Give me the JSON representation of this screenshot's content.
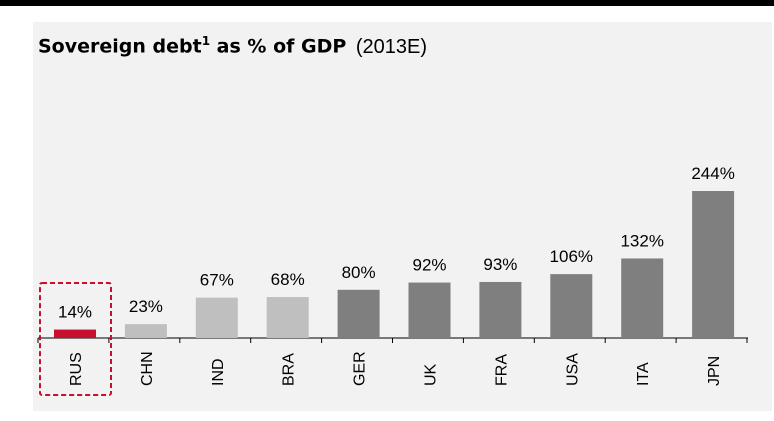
{
  "title": {
    "main": "Sovereign debt",
    "superscript": "1",
    "rest": " as % of GDP",
    "period": "(2013E)"
  },
  "colors": {
    "highlight": "#c8102e",
    "emerging": "#bfbfbf",
    "developed": "#7f7f7f",
    "panel": "#f2f2f2"
  },
  "chart_data": {
    "type": "bar",
    "categories": [
      "RUS",
      "CHN",
      "IND",
      "BRA",
      "GER",
      "UK",
      "FRA",
      "USA",
      "ITA",
      "JPN"
    ],
    "values": [
      14,
      23,
      67,
      68,
      80,
      92,
      93,
      106,
      132,
      244
    ],
    "value_labels": [
      "14%",
      "23%",
      "67%",
      "68%",
      "80%",
      "92%",
      "93%",
      "106%",
      "132%",
      "244%"
    ],
    "bar_groups": [
      "highlight",
      "emerging",
      "emerging",
      "emerging",
      "developed",
      "developed",
      "developed",
      "developed",
      "developed",
      "developed"
    ],
    "highlighted_category": "RUS",
    "ylim": [
      0,
      244
    ],
    "grid": false
  }
}
